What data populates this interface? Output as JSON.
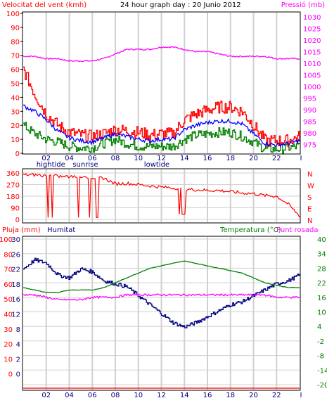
{
  "header": {
    "wind_title": "Velocitat del vent (kmh)",
    "graph_title": "24 hour graph day : 20 Junio 2012",
    "pressure_title": "Pressió (mb)"
  },
  "colors": {
    "wind_avg": "#0000ff",
    "wind_gust": "#ff0000",
    "wind_lull": "#008000",
    "pressure": "#ff00ff",
    "direction": "#ff0000",
    "rain": "#ff0000",
    "humidity": "#000080",
    "temperature": "#008000",
    "dewpoint": "#ff00ff",
    "grid": "#d0d0d0"
  },
  "x_axis": {
    "ticks": [
      "02",
      "04",
      "06",
      "08",
      "10",
      "12",
      "14",
      "16",
      "18",
      "20",
      "22",
      "I"
    ],
    "events_top": [
      {
        "label": "hightide",
        "hour": 2.4
      },
      {
        "label": "sunrise",
        "hour": 5.4
      },
      {
        "label": "lowtide",
        "hour": 11.6
      }
    ]
  },
  "panel1": {
    "left_ticks": [
      "100",
      "90",
      "80",
      "70",
      "60",
      "50",
      "40",
      "30",
      "20",
      "10",
      "0"
    ],
    "right_ticks": [
      "1030",
      "1025",
      "1020",
      "1015",
      "1010",
      "1005",
      "1000",
      "995",
      "990",
      "985",
      "980",
      "975"
    ]
  },
  "panel2": {
    "left_ticks": [
      "360",
      "270",
      "180",
      "90",
      "0"
    ],
    "right_labels": [
      "N",
      "W",
      "S",
      "E",
      "N"
    ]
  },
  "panel3": {
    "rain_label": "Pluja (mm)",
    "humidity_label": "Humitat",
    "temperature_label": "Temperatura (°C)",
    "dewpoint_label": "Punt rosada",
    "rain_ticks": [
      "100",
      "80",
      "70",
      "60",
      "50",
      "40",
      "30",
      "20",
      "10",
      "0"
    ],
    "humidity_ticks": [
      "30",
      "26",
      "22",
      "18",
      "16",
      "12",
      "8",
      "4",
      "2",
      "0"
    ],
    "temp_ticks": [
      "40",
      "34",
      "28",
      "22",
      "16",
      "10",
      "4",
      "-2",
      "-8",
      "-14",
      "-20"
    ]
  },
  "chart_data": [
    {
      "type": "line",
      "title": "24 hour graph day : 20 Junio 2012",
      "ylabel": "Velocitat del vent (kmh)",
      "y2label": "Pressió (mb)",
      "ylim": [
        0,
        100
      ],
      "y2lim": [
        972,
        1030
      ],
      "x": [
        0,
        1,
        2,
        3,
        4,
        5,
        6,
        7,
        8,
        9,
        10,
        11,
        12,
        13,
        14,
        15,
        16,
        17,
        18,
        19,
        20,
        21,
        22,
        23,
        24
      ],
      "series": [
        {
          "name": "gust",
          "values": [
            60,
            42,
            28,
            20,
            15,
            13,
            12,
            14,
            17,
            16,
            15,
            13,
            14,
            14,
            24,
            28,
            31,
            33,
            33,
            30,
            20,
            9,
            9,
            9,
            12
          ]
        },
        {
          "name": "average",
          "values": [
            34,
            30,
            24,
            16,
            11,
            9,
            8,
            11,
            14,
            12,
            10,
            9,
            10,
            10,
            17,
            20,
            22,
            23,
            23,
            21,
            14,
            7,
            6,
            7,
            9
          ]
        },
        {
          "name": "lull",
          "values": [
            20,
            14,
            10,
            8,
            5,
            4,
            4,
            7,
            10,
            7,
            5,
            5,
            5,
            5,
            10,
            13,
            14,
            15,
            15,
            12,
            8,
            3,
            3,
            4,
            5
          ]
        },
        {
          "name": "pressure",
          "values": [
            1013,
            1013,
            1012,
            1012,
            1011,
            1011,
            1011,
            1012,
            1014,
            1016,
            1016,
            1016,
            1017,
            1017,
            1016,
            1015,
            1015,
            1014,
            1013,
            1013,
            1013,
            1013,
            1012,
            1012,
            1012
          ]
        }
      ]
    },
    {
      "type": "line",
      "ylim": [
        0,
        360
      ],
      "x": [
        0,
        1,
        2,
        3,
        4,
        5,
        6,
        7,
        8,
        9,
        10,
        11,
        12,
        13,
        14,
        15,
        16,
        17,
        18,
        19,
        20,
        21,
        22,
        23,
        24
      ],
      "series": [
        {
          "name": "direction",
          "values": [
            345,
            345,
            340,
            335,
            330,
            330,
            325,
            320,
            275,
            280,
            270,
            260,
            250,
            245,
            235,
            230,
            225,
            225,
            215,
            205,
            200,
            185,
            180,
            120,
            25
          ]
        }
      ]
    },
    {
      "type": "line",
      "ylabel": "Pluja (mm)",
      "y2label": "Temperatura (°C)",
      "ylim": [
        0,
        100
      ],
      "y2lim": [
        -20,
        40
      ],
      "x": [
        0,
        1,
        2,
        3,
        4,
        5,
        6,
        7,
        8,
        9,
        10,
        11,
        12,
        13,
        14,
        15,
        16,
        17,
        18,
        19,
        20,
        21,
        22,
        23,
        24
      ],
      "series": [
        {
          "name": "Humitat",
          "values": [
            80,
            86,
            84,
            76,
            74,
            80,
            78,
            72,
            70,
            68,
            62,
            56,
            50,
            44,
            41,
            44,
            48,
            52,
            56,
            58,
            62,
            66,
            70,
            72,
            76
          ]
        },
        {
          "name": "Temperatura",
          "values": [
            20,
            19,
            18,
            18,
            19,
            19,
            19,
            20,
            22,
            24,
            26,
            28,
            29,
            30,
            31,
            30,
            29,
            28,
            27,
            26,
            24,
            22,
            21,
            20,
            20
          ]
        },
        {
          "name": "Punt rosada",
          "values": [
            17,
            17,
            16,
            15,
            15,
            15,
            16,
            16,
            16,
            17,
            17,
            17,
            17,
            17,
            17,
            17,
            17,
            17,
            17,
            17,
            17,
            17,
            16,
            16,
            16
          ]
        },
        {
          "name": "Pluja",
          "values": [
            0,
            0,
            0,
            0,
            0,
            0,
            0,
            0,
            0,
            0,
            0,
            0,
            0,
            0,
            0,
            0,
            0,
            0,
            0,
            0,
            0,
            0,
            0,
            0,
            0
          ]
        }
      ]
    }
  ]
}
